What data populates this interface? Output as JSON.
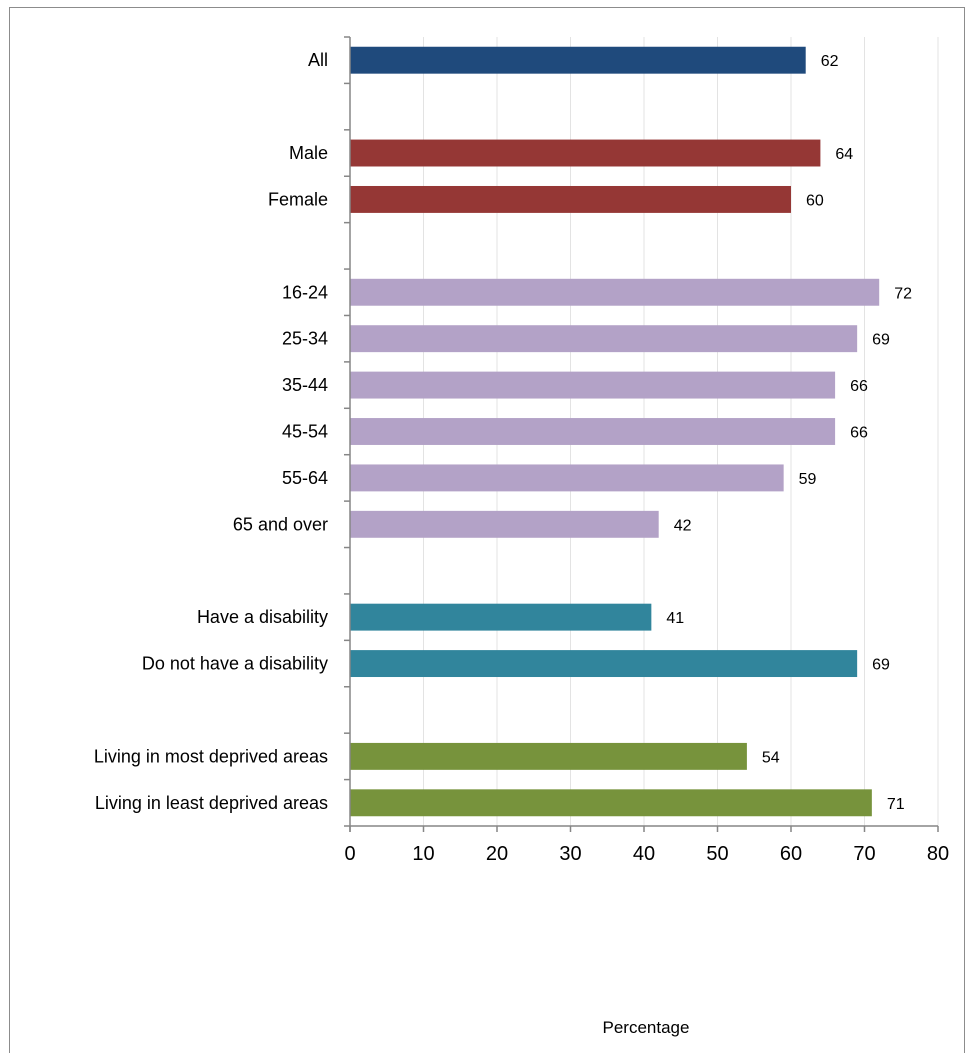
{
  "chart_data": {
    "type": "bar",
    "orientation": "horizontal",
    "title": "",
    "xlabel": "Percentage",
    "ylabel": "",
    "xlim": [
      0,
      80
    ],
    "x_ticks": [
      "0",
      "10",
      "20",
      "30",
      "40",
      "50",
      "60",
      "70",
      "80"
    ],
    "grid": "vertical",
    "legend": "none",
    "groups": [
      {
        "color": "#1f4a7c",
        "bars": [
          {
            "category": "All",
            "value": 62
          }
        ]
      },
      {
        "color": "#953735",
        "bars": [
          {
            "category": "Male",
            "value": 64
          },
          {
            "category": "Female",
            "value": 60
          }
        ]
      },
      {
        "color": "#b3a2c7",
        "bars": [
          {
            "category": "16-24",
            "value": 72
          },
          {
            "category": "25-34",
            "value": 69
          },
          {
            "category": "35-44",
            "value": 66
          },
          {
            "category": "45-54",
            "value": 66
          },
          {
            "category": "55-64",
            "value": 59
          },
          {
            "category": "65 and over",
            "value": 42
          }
        ]
      },
      {
        "color": "#31859c",
        "bars": [
          {
            "category": "Have a disability",
            "value": 41
          },
          {
            "category": "Do not have a disability",
            "value": 69
          }
        ]
      },
      {
        "color": "#77933c",
        "bars": [
          {
            "category": "Living in most deprived areas",
            "value": 54
          },
          {
            "category": "Living in least deprived areas",
            "value": 71
          }
        ]
      }
    ]
  }
}
